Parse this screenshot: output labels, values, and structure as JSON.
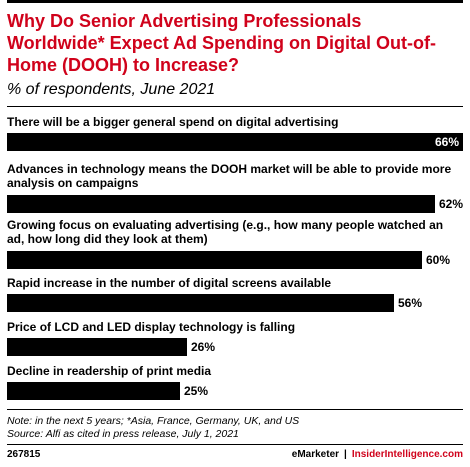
{
  "chart_data": {
    "type": "bar",
    "title": "Why Do Senior Advertising Professionals Worldwide* Expect Ad Spending on Digital Out-of-Home (DOOH) to Increase?",
    "subtitle": "% of respondents, June 2021",
    "categories": [
      "There will be a bigger general spend on digital advertising",
      "Advances in technology means the DOOH market will be able to provide more analysis on campaigns",
      "Growing focus on evaluating advertising (e.g., how many people watched an ad, how long did they look at them)",
      "Rapid increase in the number of digital screens available",
      "Price of LCD and LED display technology is falling",
      "Decline in readership of print media"
    ],
    "values": [
      66,
      62,
      60,
      56,
      26,
      25
    ],
    "value_labels": [
      "66%",
      "62%",
      "60%",
      "56%",
      "26%",
      "25%"
    ],
    "xlim": [
      0,
      66
    ],
    "bar_color": "#000000",
    "title_color": "#d0021b"
  },
  "footer": {
    "note": "Note: in the next 5 years; *Asia, France, Germany, UK, and US",
    "source": "Source: Alfi as cited in press release, July 1, 2021",
    "chart_id": "267815",
    "brand": "eMarketer",
    "separator": "|",
    "brand2": "InsiderIntelligence.com"
  }
}
